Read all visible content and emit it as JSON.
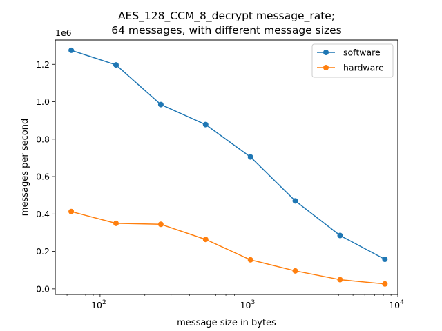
{
  "chart_data": {
    "type": "line",
    "title": [
      "AES_128_CCM_8_decrypt message_rate;",
      "64 messages, with different message sizes"
    ],
    "xlabel": "message size in bytes",
    "ylabel": "messages per second",
    "xscale": "log",
    "xlim": [
      50,
      10000
    ],
    "ylim": [
      -0.03,
      1.33
    ],
    "y_offset_label": "1e6",
    "x_ticks": [
      {
        "value": 100,
        "base": "10",
        "exp": "2"
      },
      {
        "value": 1000,
        "base": "10",
        "exp": "3"
      },
      {
        "value": 10000,
        "base": "10",
        "exp": "4"
      }
    ],
    "y_ticks": [
      0.0,
      0.2,
      0.4,
      0.6,
      0.8,
      1.0,
      1.2
    ],
    "y_tick_labels": [
      "0.0",
      "0.2",
      "0.4",
      "0.6",
      "0.8",
      "1.0",
      "1.2"
    ],
    "x": [
      64,
      128,
      256,
      512,
      1024,
      2048,
      4096,
      8192
    ],
    "series": [
      {
        "name": "software",
        "color": "#1f77b4",
        "values": [
          1.275,
          1.197,
          0.985,
          0.878,
          0.705,
          0.47,
          0.285,
          0.158
        ]
      },
      {
        "name": "hardware",
        "color": "#ff7f0e",
        "values": [
          0.413,
          0.35,
          0.345,
          0.264,
          0.155,
          0.096,
          0.049,
          0.026
        ]
      }
    ],
    "legend": "top-right",
    "grid": false
  }
}
